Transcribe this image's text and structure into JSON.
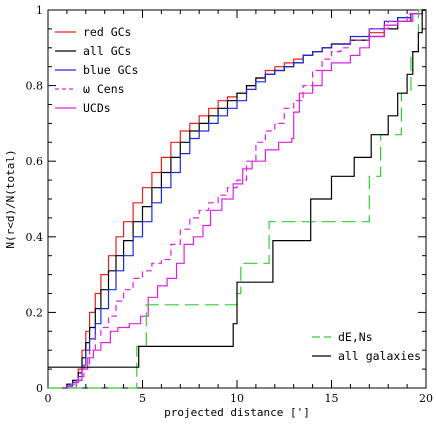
{
  "chart_data": {
    "type": "line",
    "step": true,
    "xlabel": "projected distance [']",
    "ylabel": "N(r<d)/N(total)",
    "xlim": [
      0,
      20
    ],
    "ylim": [
      0,
      1
    ],
    "x_ticks": [
      0,
      5,
      10,
      15,
      20
    ],
    "y_ticks": [
      0,
      0.2,
      0.4,
      0.6,
      0.8,
      1
    ],
    "x_tick_labels": [
      "0",
      "5",
      "10",
      "15",
      "20"
    ],
    "y_tick_labels": [
      "0",
      "0.2",
      "0.4",
      "0.6",
      "0.8",
      "1"
    ],
    "grid": false,
    "legends": [
      {
        "position": "top-left",
        "entries": [
          "red GCs",
          "all GCs",
          "blue GCs",
          "ω Cens",
          "UCDs"
        ]
      },
      {
        "position": "bottom-right",
        "entries": [
          "dE,Ns",
          "all galaxies"
        ]
      }
    ],
    "series": [
      {
        "name": "red GCs",
        "color": "#e8201a",
        "dash": "solid",
        "points": [
          [
            0.8,
            0
          ],
          [
            1.0,
            0.01
          ],
          [
            1.3,
            0.02
          ],
          [
            1.6,
            0.05
          ],
          [
            1.8,
            0.1
          ],
          [
            2.0,
            0.15
          ],
          [
            2.2,
            0.2
          ],
          [
            2.5,
            0.25
          ],
          [
            2.8,
            0.3
          ],
          [
            3.2,
            0.35
          ],
          [
            3.6,
            0.4
          ],
          [
            4.0,
            0.44
          ],
          [
            4.5,
            0.49
          ],
          [
            5.0,
            0.53
          ],
          [
            5.5,
            0.57
          ],
          [
            6.0,
            0.61
          ],
          [
            6.5,
            0.65
          ],
          [
            7.0,
            0.68
          ],
          [
            7.5,
            0.7
          ],
          [
            8.0,
            0.72
          ],
          [
            8.5,
            0.74
          ],
          [
            9.0,
            0.76
          ],
          [
            9.5,
            0.77
          ],
          [
            10.0,
            0.78
          ],
          [
            10.5,
            0.8
          ],
          [
            11.0,
            0.82
          ],
          [
            11.5,
            0.84
          ],
          [
            12.0,
            0.85
          ],
          [
            12.5,
            0.86
          ],
          [
            13.0,
            0.87
          ],
          [
            13.5,
            0.88
          ],
          [
            14.0,
            0.89
          ],
          [
            14.5,
            0.9
          ],
          [
            15.0,
            0.91
          ],
          [
            16.0,
            0.92
          ],
          [
            17.0,
            0.94
          ],
          [
            17.8,
            0.96
          ],
          [
            18.5,
            0.98
          ],
          [
            19.2,
            0.99
          ],
          [
            19.8,
            1.0
          ]
        ]
      },
      {
        "name": "all GCs",
        "color": "#000000",
        "dash": "solid",
        "points": [
          [
            0.8,
            0
          ],
          [
            1.0,
            0.01
          ],
          [
            1.3,
            0.02
          ],
          [
            1.6,
            0.04
          ],
          [
            1.8,
            0.08
          ],
          [
            2.0,
            0.12
          ],
          [
            2.2,
            0.16
          ],
          [
            2.5,
            0.21
          ],
          [
            2.8,
            0.26
          ],
          [
            3.2,
            0.31
          ],
          [
            3.6,
            0.35
          ],
          [
            4.0,
            0.39
          ],
          [
            4.5,
            0.44
          ],
          [
            5.0,
            0.48
          ],
          [
            5.5,
            0.53
          ],
          [
            6.0,
            0.57
          ],
          [
            6.5,
            0.61
          ],
          [
            7.0,
            0.65
          ],
          [
            7.5,
            0.68
          ],
          [
            8.0,
            0.7
          ],
          [
            8.5,
            0.72
          ],
          [
            9.0,
            0.74
          ],
          [
            9.5,
            0.76
          ],
          [
            10.0,
            0.78
          ],
          [
            10.5,
            0.8
          ],
          [
            11.0,
            0.82
          ],
          [
            11.5,
            0.83
          ],
          [
            12.0,
            0.84
          ],
          [
            12.5,
            0.85
          ],
          [
            13.0,
            0.86
          ],
          [
            13.5,
            0.88
          ],
          [
            14.0,
            0.89
          ],
          [
            14.5,
            0.9
          ],
          [
            15.0,
            0.91
          ],
          [
            16.0,
            0.92
          ],
          [
            17.0,
            0.93
          ],
          [
            17.8,
            0.95
          ],
          [
            18.5,
            0.97
          ],
          [
            19.2,
            0.99
          ],
          [
            19.8,
            1.0
          ]
        ]
      },
      {
        "name": "blue GCs",
        "color": "#1a2adb",
        "dash": "solid",
        "points": [
          [
            0.8,
            0
          ],
          [
            1.0,
            0.005
          ],
          [
            1.3,
            0.015
          ],
          [
            1.6,
            0.03
          ],
          [
            1.8,
            0.06
          ],
          [
            2.0,
            0.1
          ],
          [
            2.2,
            0.13
          ],
          [
            2.5,
            0.17
          ],
          [
            2.8,
            0.21
          ],
          [
            3.2,
            0.26
          ],
          [
            3.6,
            0.31
          ],
          [
            4.0,
            0.35
          ],
          [
            4.5,
            0.4
          ],
          [
            5.0,
            0.44
          ],
          [
            5.5,
            0.49
          ],
          [
            6.0,
            0.53
          ],
          [
            6.5,
            0.57
          ],
          [
            7.0,
            0.62
          ],
          [
            7.5,
            0.66
          ],
          [
            8.0,
            0.68
          ],
          [
            8.5,
            0.7
          ],
          [
            9.0,
            0.72
          ],
          [
            9.5,
            0.74
          ],
          [
            10.0,
            0.76
          ],
          [
            10.5,
            0.79
          ],
          [
            11.0,
            0.81
          ],
          [
            11.5,
            0.83
          ],
          [
            12.0,
            0.84
          ],
          [
            12.5,
            0.85
          ],
          [
            13.0,
            0.86
          ],
          [
            13.5,
            0.88
          ],
          [
            14.0,
            0.89
          ],
          [
            14.5,
            0.9
          ],
          [
            15.0,
            0.91
          ],
          [
            16.0,
            0.93
          ],
          [
            17.0,
            0.95
          ],
          [
            17.8,
            0.97
          ],
          [
            18.5,
            0.98
          ],
          [
            19.2,
            0.99
          ],
          [
            19.8,
            1.0
          ]
        ]
      },
      {
        "name": "ω Cens",
        "color": "#e020e0",
        "dash": "dashed",
        "points": [
          [
            0.8,
            0
          ],
          [
            1.2,
            0.01
          ],
          [
            1.6,
            0.03
          ],
          [
            1.9,
            0.06
          ],
          [
            2.2,
            0.1
          ],
          [
            2.5,
            0.14
          ],
          [
            2.8,
            0.16
          ],
          [
            3.2,
            0.19
          ],
          [
            3.6,
            0.23
          ],
          [
            4.0,
            0.26
          ],
          [
            4.5,
            0.29
          ],
          [
            5.0,
            0.31
          ],
          [
            5.5,
            0.33
          ],
          [
            6.0,
            0.34
          ],
          [
            6.5,
            0.38
          ],
          [
            7.0,
            0.42
          ],
          [
            7.5,
            0.45
          ],
          [
            8.0,
            0.47
          ],
          [
            8.5,
            0.49
          ],
          [
            9.0,
            0.51
          ],
          [
            9.5,
            0.53
          ],
          [
            10.0,
            0.55
          ],
          [
            10.5,
            0.6
          ],
          [
            11.0,
            0.65
          ],
          [
            11.5,
            0.68
          ],
          [
            12.0,
            0.7
          ],
          [
            12.5,
            0.74
          ],
          [
            13.0,
            0.76
          ],
          [
            13.5,
            0.8
          ],
          [
            14.0,
            0.84
          ],
          [
            14.5,
            0.87
          ],
          [
            15.0,
            0.89
          ],
          [
            15.5,
            0.9
          ],
          [
            16.0,
            0.92
          ],
          [
            17.0,
            0.95
          ],
          [
            18.0,
            0.97
          ],
          [
            19.0,
            0.99
          ],
          [
            19.8,
            1.0
          ]
        ]
      },
      {
        "name": "UCDs",
        "color": "#e020e0",
        "dash": "solid",
        "points": [
          [
            0.8,
            0
          ],
          [
            1.5,
            0.02
          ],
          [
            1.8,
            0.05
          ],
          [
            2.1,
            0.08
          ],
          [
            2.4,
            0.1
          ],
          [
            2.8,
            0.12
          ],
          [
            3.3,
            0.15
          ],
          [
            3.7,
            0.16
          ],
          [
            4.3,
            0.17
          ],
          [
            4.9,
            0.19
          ],
          [
            5.3,
            0.24
          ],
          [
            5.8,
            0.27
          ],
          [
            6.3,
            0.29
          ],
          [
            6.8,
            0.33
          ],
          [
            7.2,
            0.38
          ],
          [
            7.7,
            0.4
          ],
          [
            8.2,
            0.43
          ],
          [
            8.6,
            0.47
          ],
          [
            9.2,
            0.5
          ],
          [
            9.8,
            0.54
          ],
          [
            10.3,
            0.58
          ],
          [
            10.8,
            0.6
          ],
          [
            11.5,
            0.63
          ],
          [
            12.2,
            0.65
          ],
          [
            12.9,
            0.66
          ],
          [
            13.0,
            0.73
          ],
          [
            13.3,
            0.78
          ],
          [
            14.0,
            0.8
          ],
          [
            14.5,
            0.84
          ],
          [
            15.0,
            0.86
          ],
          [
            16.0,
            0.88
          ],
          [
            16.5,
            0.9
          ],
          [
            17.0,
            0.93
          ],
          [
            17.8,
            0.96
          ],
          [
            18.5,
            0.97
          ],
          [
            19.3,
            0.99
          ],
          [
            19.8,
            1.0
          ]
        ]
      },
      {
        "name": "dE,Ns",
        "color": "#33cc33",
        "dash": "longdash",
        "points": [
          [
            0,
            0
          ],
          [
            4.7,
            0
          ],
          [
            4.7,
            0.11
          ],
          [
            5.2,
            0.22
          ],
          [
            10.0,
            0.25
          ],
          [
            10.2,
            0.33
          ],
          [
            11.7,
            0.44
          ],
          [
            17.0,
            0.56
          ],
          [
            17.6,
            0.67
          ],
          [
            18.7,
            0.78
          ],
          [
            19.2,
            0.89
          ],
          [
            19.6,
            1.0
          ]
        ]
      },
      {
        "name": "all galaxies",
        "color": "#000000",
        "dash": "solid",
        "points": [
          [
            0,
            0.055
          ],
          [
            4.8,
            0.11
          ],
          [
            9.8,
            0.17
          ],
          [
            10.0,
            0.28
          ],
          [
            11.9,
            0.39
          ],
          [
            13.9,
            0.5
          ],
          [
            15.0,
            0.56
          ],
          [
            16.2,
            0.61
          ],
          [
            17.1,
            0.67
          ],
          [
            18.0,
            0.72
          ],
          [
            18.5,
            0.78
          ],
          [
            19.0,
            0.83
          ],
          [
            19.3,
            0.89
          ],
          [
            19.6,
            0.94
          ],
          [
            19.8,
            1.0
          ]
        ]
      }
    ]
  }
}
